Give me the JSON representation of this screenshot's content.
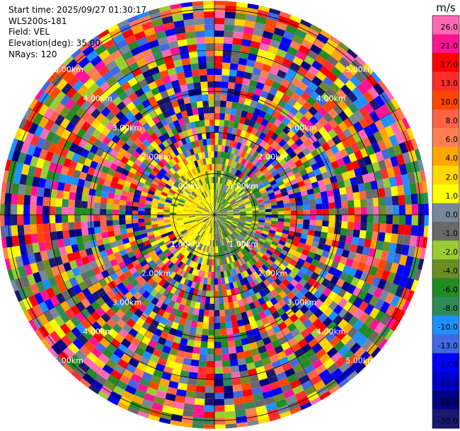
{
  "info": {
    "start_time": "Start time: 2025/09/27 01:30:17",
    "instrument": "WLS200s-181",
    "field": "Field: VEL",
    "elevation": "Elevation(deg): 35.00",
    "nrays": "NRays: 120"
  },
  "chart_data": {
    "type": "heatmap",
    "projection": "polar-ppi",
    "title": "",
    "field": "VEL",
    "elevation_deg": 35.0,
    "n_rays": 120,
    "range_rings_km": [
      1.0,
      2.0,
      3.0,
      4.0,
      5.0
    ],
    "ring_labels": [
      "1.00km",
      "2.00km",
      "3.00km",
      "4.00km",
      "5.00km"
    ],
    "max_range_km": 5.2,
    "colorbar": {
      "unit": "m/s",
      "ticks": [
        "26.0",
        "21.0",
        "17.0",
        "13.0",
        "10.0",
        "8.0",
        "6.0",
        "4.0",
        "2.0",
        "1.0",
        "0.0",
        "-1.0",
        "-2.0",
        "-4.0",
        "-6.0",
        "-8.0",
        "-10.0",
        "-13.0",
        "-17.0",
        "-21.0",
        "-26.0",
        "-30.0"
      ],
      "colors": [
        "#ff69b4",
        "#ff1493",
        "#ff0000",
        "#ff2d2d",
        "#ff4500",
        "#ff6347",
        "#ff7f50",
        "#ffa500",
        "#ffd700",
        "#ffff00",
        "#778899",
        "#696969",
        "#9acd32",
        "#6b8e23",
        "#228b22",
        "#2e8b57",
        "#1e90ff",
        "#4169e1",
        "#0000ff",
        "#0000cd",
        "#000080",
        "#191970"
      ]
    },
    "pattern": "inner ~1 km dominated by yellow (+2 to +4 m/s) on the west and grey/olive (-2 to 0 m/s) on the east; beyond ~1.5 km mostly random noise across full scale"
  }
}
